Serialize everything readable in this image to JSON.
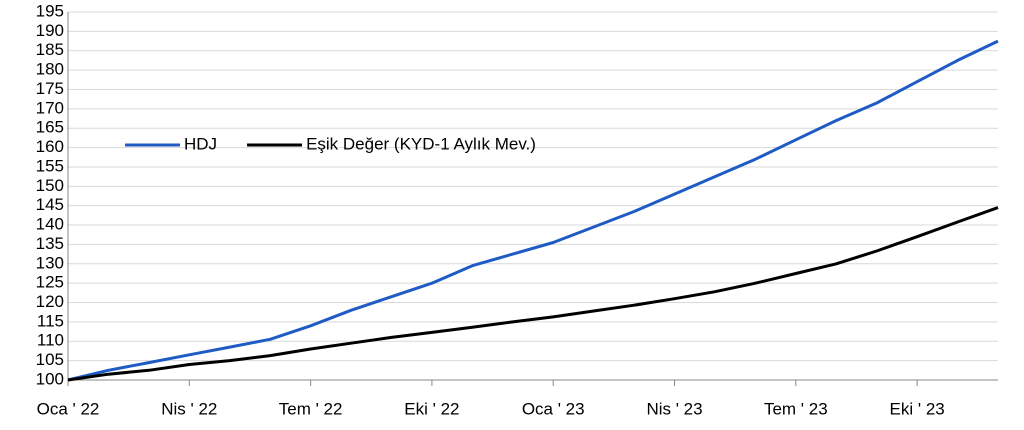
{
  "chart_data": {
    "type": "line",
    "categories": [
      "Oca ' 22",
      null,
      null,
      "Nis ' 22",
      null,
      null,
      "Tem ' 22",
      null,
      null,
      "Eki ' 22",
      null,
      null,
      "Oca ' 23",
      null,
      null,
      "Nis ' 23",
      null,
      null,
      "Tem ' 23",
      null,
      null,
      "Eki ' 23",
      null,
      null
    ],
    "series": [
      {
        "name": "HDJ",
        "color": "#1f5bc4",
        "values": [
          100,
          102.5,
          104.5,
          106.5,
          108.5,
          110.5,
          114,
          118,
          121.5,
          125,
          129.5,
          132.5,
          135.5,
          139.5,
          143.5,
          148,
          152.5,
          157,
          162,
          167,
          171.5,
          177,
          182.5,
          187.5
        ]
      },
      {
        "name": "Eşik Değer (KYD-1 Aylık Mev.)",
        "color": "#000000",
        "values": [
          100,
          101.5,
          102.5,
          104,
          105,
          106.3,
          108,
          109.5,
          111,
          112.3,
          113.6,
          115,
          116.3,
          117.8,
          119.3,
          121,
          122.8,
          125,
          127.5,
          130,
          133.3,
          137,
          140.8,
          144.5
        ]
      }
    ],
    "ylim": [
      100,
      195
    ],
    "yticks": [
      100,
      105,
      110,
      115,
      120,
      125,
      130,
      135,
      140,
      145,
      150,
      155,
      160,
      165,
      170,
      175,
      180,
      185,
      190,
      195
    ],
    "grid": true,
    "legend": "left"
  }
}
